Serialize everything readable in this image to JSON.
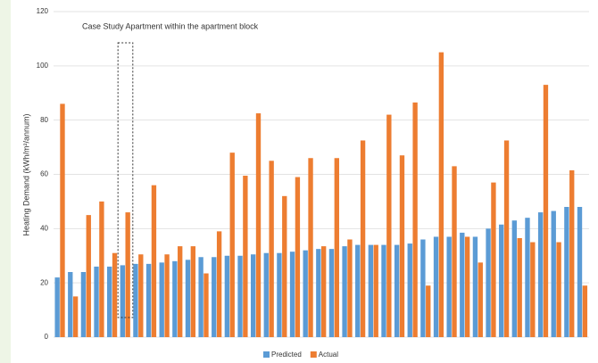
{
  "chart_data": {
    "type": "bar",
    "annotation": "Case Study Apartment within the apartment block",
    "y_label": "Heating Demand (kWh/m²/annum)",
    "categories": [
      null,
      null,
      null,
      null,
      null,
      null,
      null,
      null,
      null,
      null,
      null,
      null,
      null,
      null,
      null,
      null,
      null,
      null,
      null,
      null,
      null,
      null,
      null,
      null,
      null,
      null,
      null,
      null,
      null,
      null,
      null,
      null,
      null,
      null,
      null,
      null,
      null,
      null,
      null,
      null,
      null
    ],
    "highlight_category": 5,
    "series": [
      {
        "name": "Predicted",
        "color": "#5b9bd5",
        "values": [
          22,
          24,
          24,
          26,
          26,
          26.5,
          27,
          27,
          27.5,
          28,
          28.5,
          29.5,
          29.5,
          30,
          30,
          30.5,
          31,
          31,
          31.5,
          32,
          32.5,
          32.5,
          33.5,
          34,
          34,
          34,
          34,
          34.5,
          36,
          37,
          37,
          38.5,
          37,
          40,
          41.5,
          43,
          44,
          46,
          46.5,
          48,
          48
        ]
      },
      {
        "name": "Actual",
        "color": "#ed7d31",
        "values": [
          86,
          15,
          45,
          50,
          31,
          46,
          30.5,
          56,
          30.5,
          33.5,
          33.5,
          23.5,
          39,
          68,
          59.5,
          82.5,
          65,
          52,
          59,
          66,
          33.5,
          66,
          36,
          72.5,
          34,
          82,
          67,
          86.5,
          19,
          105,
          63,
          37,
          27.5,
          57,
          72.5,
          36.5,
          35,
          93,
          35,
          61.5,
          19
        ]
      }
    ],
    "ylim": [
      0,
      120
    ],
    "yticks": [
      0,
      20,
      40,
      60,
      80,
      100,
      120
    ],
    "grid": true,
    "legend": "bottom"
  }
}
